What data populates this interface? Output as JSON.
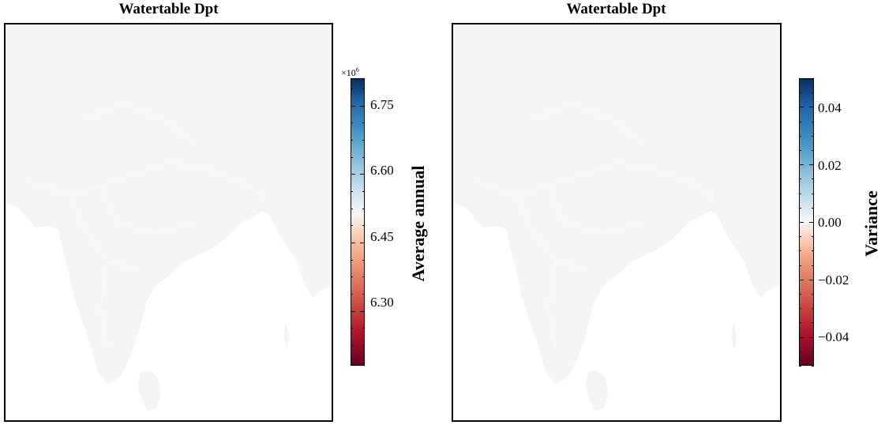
{
  "figure": {
    "panels": [
      {
        "title": "Watertable Dpt",
        "colorbar": {
          "label": "Average annual",
          "multiplier_base": "×10",
          "multiplier_exp": "6",
          "ticks": [
            "6.75",
            "6.60",
            "6.45",
            "6.30"
          ]
        }
      },
      {
        "title": "Watertable Dpt",
        "colorbar": {
          "label": "Variance",
          "ticks": [
            "0.04",
            "0.02",
            "0.00",
            "−0.02",
            "−0.04"
          ]
        }
      }
    ]
  },
  "chart_data": [
    {
      "type": "heatmap",
      "title": "Watertable Dpt",
      "colormap": "RdBu",
      "colorbar_label": "Average annual",
      "colorbar_range": [
        6.18,
        6.81
      ],
      "colorbar_ticks": [
        6.3,
        6.45,
        6.6,
        6.75
      ],
      "colorbar_scale": "×10^6",
      "map_fill_color": "#f4f6f5",
      "grid": false
    },
    {
      "type": "heatmap",
      "title": "Watertable Dpt",
      "colormap": "RdBu",
      "colorbar_label": "Variance",
      "colorbar_range": [
        -0.05,
        0.05
      ],
      "colorbar_ticks": [
        -0.04,
        -0.02,
        0.0,
        0.02,
        0.04
      ],
      "map_fill_color": "#f4f6f5",
      "grid": false
    }
  ]
}
